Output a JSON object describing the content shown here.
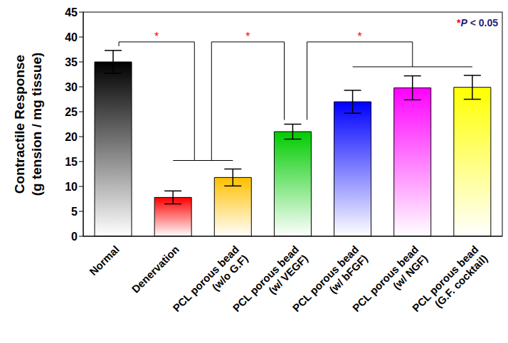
{
  "chart_data": {
    "type": "bar",
    "categories": [
      "Normal",
      "Denervation",
      "PCL porous bead (w/o G.F)",
      "PCL porous bead (w/ VEGF)",
      "PCL porous bead (w/ bFGF)",
      "PCL porous bead (w/ NGF)",
      "PCL porous bead (G.F. cocktail)"
    ],
    "values": [
      35,
      7.8,
      11.8,
      21,
      27,
      29.8,
      29.9
    ],
    "errors": [
      2.3,
      1.3,
      1.7,
      1.5,
      2.3,
      2.4,
      2.4
    ],
    "colors": [
      "#000000",
      "#ff0000",
      "#ffc000",
      "#00cc00",
      "#0000ff",
      "#ff00ff",
      "#ffff00"
    ],
    "ylabel": "Contractile Response (g tension / mg tissue)",
    "ylim": [
      0,
      45
    ],
    "yticks": [
      0,
      5,
      10,
      15,
      20,
      25,
      30,
      35,
      40,
      45
    ],
    "grid": false,
    "significance": [
      {
        "label": "*",
        "groups": [
          [
            "Normal"
          ],
          [
            "Denervation",
            "PCL porous bead (w/o G.F)"
          ]
        ]
      },
      {
        "label": "*",
        "groups": [
          [
            "Denervation",
            "PCL porous bead (w/o G.F)"
          ],
          [
            "PCL porous bead (w/ VEGF)"
          ]
        ]
      },
      {
        "label": "*",
        "groups": [
          [
            "PCL porous bead (w/ VEGF)"
          ],
          [
            "PCL porous bead (w/ bFGF)",
            "PCL porous bead (w/ NGF)",
            "PCL porous bead (G.F. cocktail)"
          ]
        ]
      }
    ],
    "annotations": [
      "*P < 0.05"
    ]
  }
}
